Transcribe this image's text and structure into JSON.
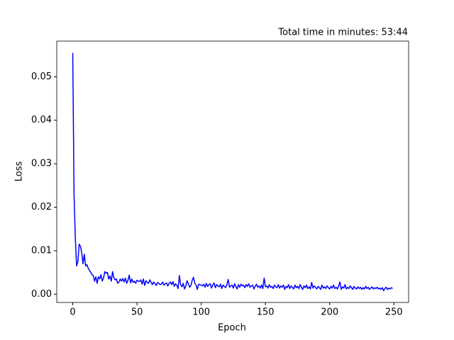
{
  "chart_data": {
    "type": "line",
    "title": "Total time in minutes: 53:44",
    "x_label": "Epoch",
    "y_label": "Loss",
    "color": "#0000ff",
    "x": [
      0,
      1,
      2,
      3,
      4,
      5,
      6,
      7,
      8,
      9,
      10,
      11,
      12,
      13,
      14,
      15,
      16,
      17,
      18,
      19,
      20,
      21,
      22,
      23,
      24,
      25,
      26,
      27,
      28,
      29,
      30,
      31,
      32,
      33,
      34,
      35,
      36,
      37,
      38,
      39,
      40,
      41,
      42,
      43,
      44,
      45,
      46,
      47,
      48,
      49,
      50,
      51,
      52,
      53,
      54,
      55,
      56,
      57,
      58,
      59,
      60,
      61,
      62,
      63,
      64,
      65,
      66,
      67,
      68,
      69,
      70,
      71,
      72,
      73,
      74,
      75,
      76,
      77,
      78,
      79,
      80,
      81,
      82,
      83,
      84,
      85,
      86,
      87,
      88,
      89,
      90,
      91,
      92,
      93,
      94,
      95,
      96,
      97,
      98,
      99,
      100,
      101,
      102,
      103,
      104,
      105,
      106,
      107,
      108,
      109,
      110,
      111,
      112,
      113,
      114,
      115,
      116,
      117,
      118,
      119,
      120,
      121,
      122,
      123,
      124,
      125,
      126,
      127,
      128,
      129,
      130,
      131,
      132,
      133,
      134,
      135,
      136,
      137,
      138,
      139,
      140,
      141,
      142,
      143,
      144,
      145,
      146,
      147,
      148,
      149,
      150,
      151,
      152,
      153,
      154,
      155,
      156,
      157,
      158,
      159,
      160,
      161,
      162,
      163,
      164,
      165,
      166,
      167,
      168,
      169,
      170,
      171,
      172,
      173,
      174,
      175,
      176,
      177,
      178,
      179,
      180,
      181,
      182,
      183,
      184,
      185,
      186,
      187,
      188,
      189,
      190,
      191,
      192,
      193,
      194,
      195,
      196,
      197,
      198,
      199,
      200,
      201,
      202,
      203,
      204,
      205,
      206,
      207,
      208,
      209,
      210,
      211,
      212,
      213,
      214,
      215,
      216,
      217,
      218,
      219,
      220,
      221,
      222,
      223,
      224,
      225,
      226,
      227,
      228,
      229,
      230,
      231,
      232,
      233,
      234,
      235,
      236,
      237,
      238,
      239,
      240,
      241,
      242,
      243,
      244,
      245,
      246,
      247,
      248,
      249
    ],
    "values": [
      0.0555,
      0.023,
      0.013,
      0.0065,
      0.0075,
      0.0115,
      0.011,
      0.0095,
      0.007,
      0.0092,
      0.0065,
      0.0068,
      0.006,
      0.0055,
      0.005,
      0.0045,
      0.0043,
      0.003,
      0.004,
      0.0025,
      0.004,
      0.0035,
      0.0045,
      0.003,
      0.0038,
      0.0052,
      0.0048,
      0.005,
      0.0035,
      0.0042,
      0.003,
      0.0052,
      0.0038,
      0.0033,
      0.0035,
      0.0025,
      0.0028,
      0.0035,
      0.003,
      0.0036,
      0.0028,
      0.0037,
      0.0025,
      0.0032,
      0.0044,
      0.0026,
      0.0035,
      0.0027,
      0.003,
      0.0025,
      0.0032,
      0.003,
      0.0029,
      0.0033,
      0.0023,
      0.0035,
      0.002,
      0.0031,
      0.0027,
      0.0025,
      0.0033,
      0.0027,
      0.0022,
      0.0028,
      0.0024,
      0.002,
      0.0027,
      0.0025,
      0.0022,
      0.0023,
      0.0028,
      0.0021,
      0.0024,
      0.0026,
      0.0019,
      0.0025,
      0.0028,
      0.0022,
      0.0029,
      0.0018,
      0.0024,
      0.0021,
      0.0013,
      0.0043,
      0.0022,
      0.0017,
      0.0025,
      0.0012,
      0.0019,
      0.0031,
      0.0024,
      0.0016,
      0.002,
      0.0032,
      0.0039,
      0.0025,
      0.0021,
      0.0011,
      0.0023,
      0.0022,
      0.0021,
      0.0019,
      0.0023,
      0.0016,
      0.0025,
      0.0018,
      0.0022,
      0.0024,
      0.0014,
      0.0021,
      0.0026,
      0.0015,
      0.0022,
      0.0019,
      0.0017,
      0.0023,
      0.0013,
      0.0021,
      0.0018,
      0.0015,
      0.0022,
      0.0034,
      0.0016,
      0.0019,
      0.0021,
      0.0014,
      0.0024,
      0.0017,
      0.0012,
      0.0022,
      0.0016,
      0.0023,
      0.0019,
      0.0021,
      0.0015,
      0.0022,
      0.0018,
      0.0024,
      0.0016,
      0.0019,
      0.0021,
      0.0012,
      0.0018,
      0.0023,
      0.0016,
      0.0019,
      0.0014,
      0.0021,
      0.0013,
      0.0037,
      0.0017,
      0.0019,
      0.0014,
      0.0022,
      0.0016,
      0.0018,
      0.0013,
      0.0021,
      0.0017,
      0.0015,
      0.0022,
      0.0014,
      0.0019,
      0.0016,
      0.0021,
      0.0011,
      0.0018,
      0.0015,
      0.0022,
      0.0013,
      0.0019,
      0.0016,
      0.0012,
      0.0021,
      0.0015,
      0.0018,
      0.0013,
      0.0022,
      0.0016,
      0.0011,
      0.0019,
      0.0015,
      0.0021,
      0.0013,
      0.0017,
      0.0012,
      0.0027,
      0.0014,
      0.0019,
      0.0016,
      0.0012,
      0.0018,
      0.0015,
      0.0011,
      0.0021,
      0.0014,
      0.0017,
      0.0013,
      0.0019,
      0.0015,
      0.0012,
      0.0018,
      0.0014,
      0.0021,
      0.0013,
      0.0016,
      0.0012,
      0.0019,
      0.0028,
      0.0011,
      0.0017,
      0.0014,
      0.0022,
      0.0012,
      0.0016,
      0.0013,
      0.0019,
      0.0015,
      0.0011,
      0.0018,
      0.0014,
      0.0012,
      0.0017,
      0.0013,
      0.0016,
      0.0011,
      0.0015,
      0.0012,
      0.0018,
      0.0013,
      0.0016,
      0.0011,
      0.0014,
      0.0017,
      0.0012,
      0.0015,
      0.0013,
      0.0016,
      0.0012,
      0.0014,
      0.0011,
      0.0015,
      0.0008,
      0.0013,
      0.0016,
      0.0011,
      0.0014,
      0.0012,
      0.0015,
      0.0013
    ],
    "xlim": [
      -12.45,
      261.45
    ],
    "ylim": [
      -0.0019,
      0.0582
    ],
    "xticks": [
      0,
      50,
      100,
      150,
      200,
      250
    ],
    "yticks": [
      {
        "value": 0,
        "label": "0.00"
      },
      {
        "value": 0.01,
        "label": "0.01"
      },
      {
        "value": 0.02,
        "label": "0.02"
      },
      {
        "value": 0.03,
        "label": "0.03"
      },
      {
        "value": 0.04,
        "label": "0.04"
      },
      {
        "value": 0.05,
        "label": "0.05"
      }
    ]
  }
}
